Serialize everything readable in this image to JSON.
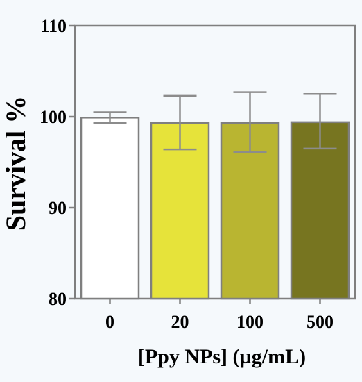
{
  "chart_data": {
    "type": "bar",
    "title": "",
    "xlabel": "[Ppy NPs] (µg/mL)",
    "ylabel": "Survival %",
    "categories": [
      "0",
      "20",
      "100",
      "500"
    ],
    "values": [
      99.9,
      99.3,
      99.3,
      99.4
    ],
    "error_low": [
      99.3,
      96.4,
      96.1,
      96.5
    ],
    "error_high": [
      100.5,
      102.3,
      102.7,
      102.5
    ],
    "bar_colors": [
      "#ffffff",
      "#e6e33a",
      "#b9b531",
      "#777520"
    ],
    "ylim": [
      80,
      110
    ],
    "yticks": [
      "80",
      "90",
      "100",
      "110"
    ],
    "grid": false
  },
  "colors": {
    "axis": "#7f7f7f",
    "error_bar": "#8c8c8c",
    "bar_border": "#7f7f7f"
  }
}
